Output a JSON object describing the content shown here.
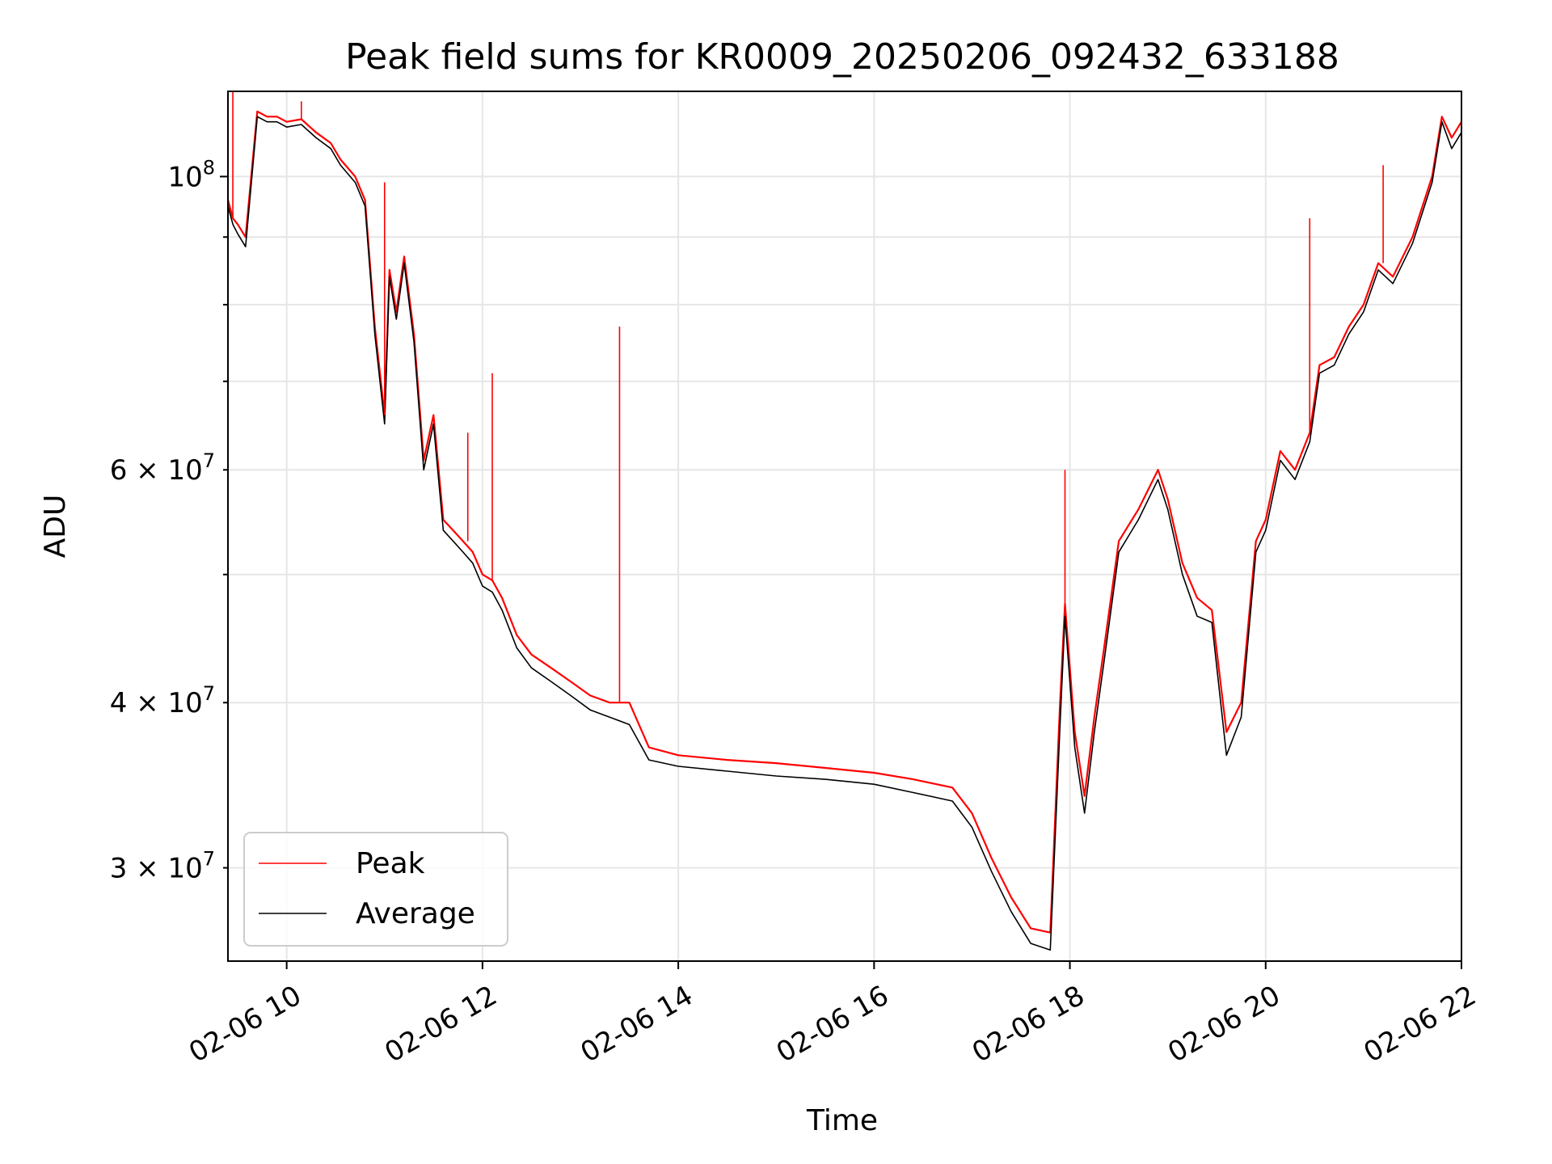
{
  "chart_data": {
    "type": "line",
    "title": "Peak field sums for KR0009_20250206_092432_633188",
    "xlabel": "Time",
    "ylabel": "ADU",
    "x_scale": "time",
    "y_scale": "log",
    "xlim": [
      "02-06 09:24",
      "02-06 22:00"
    ],
    "ylim": [
      25500000,
      116000000
    ],
    "grid": true,
    "legend_position": "lower-left",
    "x_ticks": [
      {
        "value": "02-06 10:00",
        "label": "02-06 10"
      },
      {
        "value": "02-06 12:00",
        "label": "02-06 12"
      },
      {
        "value": "02-06 14:00",
        "label": "02-06 14"
      },
      {
        "value": "02-06 16:00",
        "label": "02-06 16"
      },
      {
        "value": "02-06 18:00",
        "label": "02-06 18"
      },
      {
        "value": "02-06 20:00",
        "label": "02-06 20"
      },
      {
        "value": "02-06 22:00",
        "label": "02-06 22"
      }
    ],
    "y_major_ticks": [
      {
        "value": 100000000,
        "mantissa": "",
        "exponent": "8"
      }
    ],
    "y_minor_ticks": [
      {
        "value": 30000000,
        "mantissa": "3",
        "exponent": "7"
      },
      {
        "value": 40000000,
        "mantissa": "4",
        "exponent": "7"
      },
      {
        "value": 50000000,
        "mantissa": "",
        "exponent": ""
      },
      {
        "value": 60000000,
        "mantissa": "6",
        "exponent": "7"
      },
      {
        "value": 70000000,
        "mantissa": "",
        "exponent": ""
      },
      {
        "value": 80000000,
        "mantissa": "",
        "exponent": ""
      },
      {
        "value": 90000000,
        "mantissa": "",
        "exponent": ""
      }
    ],
    "series": [
      {
        "name": "Peak",
        "color": "#ff0000",
        "x_hours": [
          9.4,
          9.45,
          9.5,
          9.58,
          9.7,
          9.8,
          9.9,
          10.0,
          10.15,
          10.3,
          10.45,
          10.55,
          10.7,
          10.8,
          10.9,
          11.0,
          11.05,
          11.12,
          11.2,
          11.3,
          11.4,
          11.5,
          11.6,
          11.7,
          11.8,
          11.9,
          12.0,
          12.1,
          12.2,
          12.35,
          12.5,
          12.7,
          12.9,
          13.1,
          13.3,
          13.5,
          13.7,
          14.0,
          14.5,
          15.0,
          15.5,
          16.0,
          16.4,
          16.8,
          17.0,
          17.2,
          17.4,
          17.6,
          17.8,
          17.9,
          17.95,
          18.05,
          18.15,
          18.25,
          18.35,
          18.5,
          18.7,
          18.9,
          19.0,
          19.15,
          19.3,
          19.45,
          19.6,
          19.75,
          19.9,
          20.0,
          20.15,
          20.3,
          20.45,
          20.55,
          20.7,
          20.85,
          21.0,
          21.15,
          21.3,
          21.5,
          21.7,
          21.8,
          21.9,
          22.0
        ],
        "values": [
          96000000,
          93000000,
          92000000,
          90000000,
          112000000,
          111000000,
          111000000,
          110000000,
          110500000,
          108000000,
          106000000,
          103000000,
          100000000,
          96000000,
          77000000,
          66000000,
          85000000,
          79000000,
          87000000,
          76000000,
          61000000,
          66000000,
          55000000,
          54000000,
          53000000,
          52000000,
          50000000,
          49500000,
          48000000,
          45000000,
          43500000,
          42500000,
          41500000,
          40500000,
          40000000,
          40000000,
          37000000,
          36500000,
          36200000,
          36000000,
          35700000,
          35400000,
          35000000,
          34500000,
          33000000,
          30500000,
          28500000,
          27000000,
          26800000,
          40000000,
          47500000,
          38000000,
          34000000,
          39000000,
          44000000,
          53000000,
          56000000,
          60000000,
          57000000,
          51000000,
          48000000,
          47000000,
          38000000,
          40000000,
          53000000,
          55000000,
          62000000,
          60000000,
          64000000,
          72000000,
          73000000,
          77000000,
          80000000,
          86000000,
          84000000,
          90000000,
          100000000,
          111000000,
          107000000,
          110000000
        ]
      },
      {
        "name": "Average",
        "color": "#000000",
        "x_hours": [
          9.4,
          9.45,
          9.5,
          9.58,
          9.7,
          9.8,
          9.9,
          10.0,
          10.15,
          10.3,
          10.45,
          10.55,
          10.7,
          10.8,
          10.9,
          11.0,
          11.05,
          11.12,
          11.2,
          11.3,
          11.4,
          11.5,
          11.6,
          11.7,
          11.8,
          11.9,
          12.0,
          12.1,
          12.2,
          12.35,
          12.5,
          12.7,
          12.9,
          13.1,
          13.3,
          13.5,
          13.7,
          14.0,
          14.5,
          15.0,
          15.5,
          16.0,
          16.4,
          16.8,
          17.0,
          17.2,
          17.4,
          17.6,
          17.8,
          17.9,
          17.95,
          18.05,
          18.15,
          18.25,
          18.35,
          18.5,
          18.7,
          18.9,
          19.0,
          19.15,
          19.3,
          19.45,
          19.6,
          19.75,
          19.9,
          20.0,
          20.15,
          20.3,
          20.45,
          20.55,
          20.7,
          20.85,
          21.0,
          21.15,
          21.3,
          21.5,
          21.7,
          21.8,
          21.9,
          22.0
        ],
        "values": [
          95000000,
          92000000,
          90500000,
          88500000,
          111000000,
          110000000,
          110000000,
          109000000,
          109500000,
          107000000,
          105000000,
          102000000,
          99000000,
          95000000,
          76000000,
          65000000,
          84000000,
          78000000,
          86000000,
          75000000,
          60000000,
          65000000,
          54000000,
          53000000,
          52000000,
          51000000,
          49000000,
          48500000,
          47000000,
          44000000,
          42500000,
          41500000,
          40500000,
          39500000,
          39000000,
          38500000,
          36200000,
          35800000,
          35500000,
          35200000,
          35000000,
          34700000,
          34200000,
          33700000,
          32200000,
          29800000,
          27800000,
          26300000,
          26000000,
          38500000,
          46500000,
          37000000,
          33000000,
          38000000,
          43000000,
          52000000,
          55000000,
          59000000,
          56000000,
          50000000,
          46500000,
          46000000,
          36500000,
          39000000,
          52000000,
          54000000,
          61000000,
          59000000,
          63000000,
          71000000,
          72000000,
          76000000,
          79000000,
          85000000,
          83000000,
          89000000,
          99000000,
          110000000,
          105000000,
          108000000
        ]
      }
    ],
    "spikes": [
      {
        "series": "Peak",
        "x_hours": 9.45,
        "value": 116000000
      },
      {
        "series": "Peak",
        "x_hours": 10.15,
        "value": 114000000
      },
      {
        "series": "Peak",
        "x_hours": 11.0,
        "value": 99000000
      },
      {
        "series": "Peak",
        "x_hours": 11.85,
        "value": 64000000
      },
      {
        "series": "Peak",
        "x_hours": 12.1,
        "value": 71000000
      },
      {
        "series": "Peak",
        "x_hours": 13.4,
        "value": 77000000
      },
      {
        "series": "Peak",
        "x_hours": 17.95,
        "value": 60000000
      },
      {
        "series": "Peak",
        "x_hours": 20.45,
        "value": 93000000
      },
      {
        "series": "Peak",
        "x_hours": 21.2,
        "value": 102000000
      }
    ]
  }
}
